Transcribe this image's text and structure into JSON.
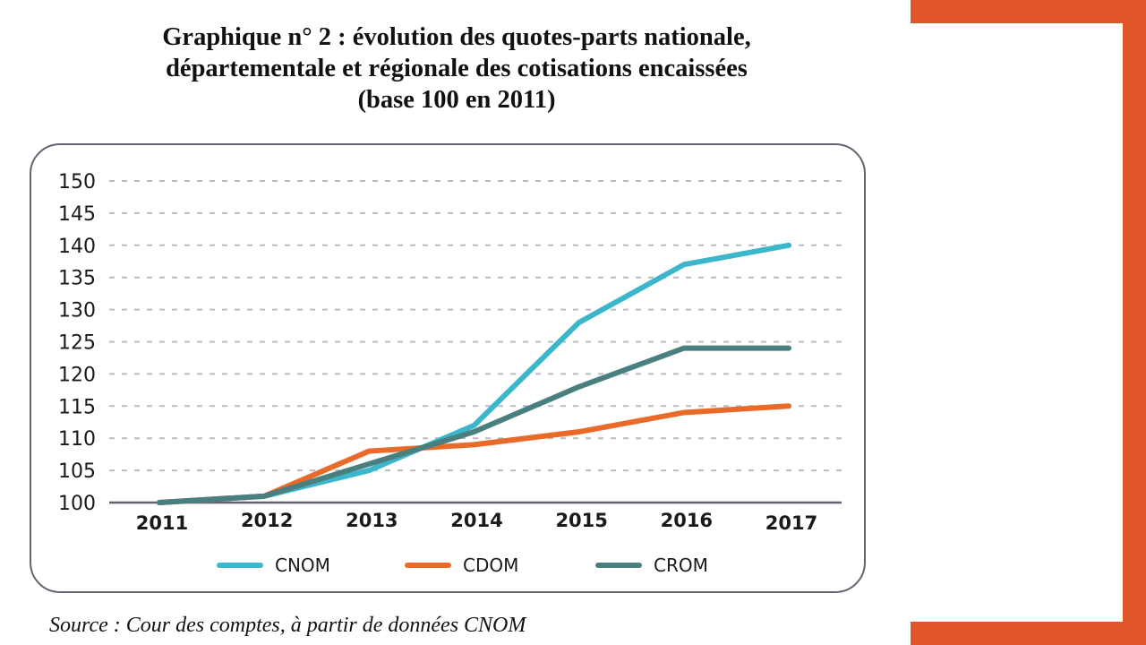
{
  "slide": {
    "title_lines": [
      "Graphique n° 2 : évolution des quotes-parts nationale,",
      "départementale et régionale des cotisations encaissées",
      "(base 100 en 2011)"
    ],
    "source": "Source : Cour des comptes, à partir de données CNOM",
    "accent_color": "#df5527"
  },
  "chart_data": {
    "type": "line",
    "title": "Graphique n° 2 : évolution des quotes-parts nationale, départementale et régionale des cotisations encaissées (base 100 en 2011)",
    "xlabel": "",
    "ylabel": "",
    "x": [
      "2011",
      "2012",
      "2013",
      "2014",
      "2015",
      "2016",
      "2017"
    ],
    "ylim": [
      100,
      150
    ],
    "yticks": [
      100,
      105,
      110,
      115,
      120,
      125,
      130,
      135,
      140,
      145,
      150
    ],
    "grid": "horizontal-dashed",
    "legend_position": "bottom",
    "series": [
      {
        "name": "CNOM",
        "color": "#3bb6cb",
        "values": [
          100,
          101,
          105,
          112,
          128,
          137,
          140
        ]
      },
      {
        "name": "CDOM",
        "color": "#ea6a2a",
        "values": [
          100,
          101,
          108,
          109,
          111,
          114,
          115
        ]
      },
      {
        "name": "CROM",
        "color": "#4a7f80",
        "values": [
          100,
          101,
          106,
          111,
          118,
          124,
          124
        ]
      }
    ]
  }
}
